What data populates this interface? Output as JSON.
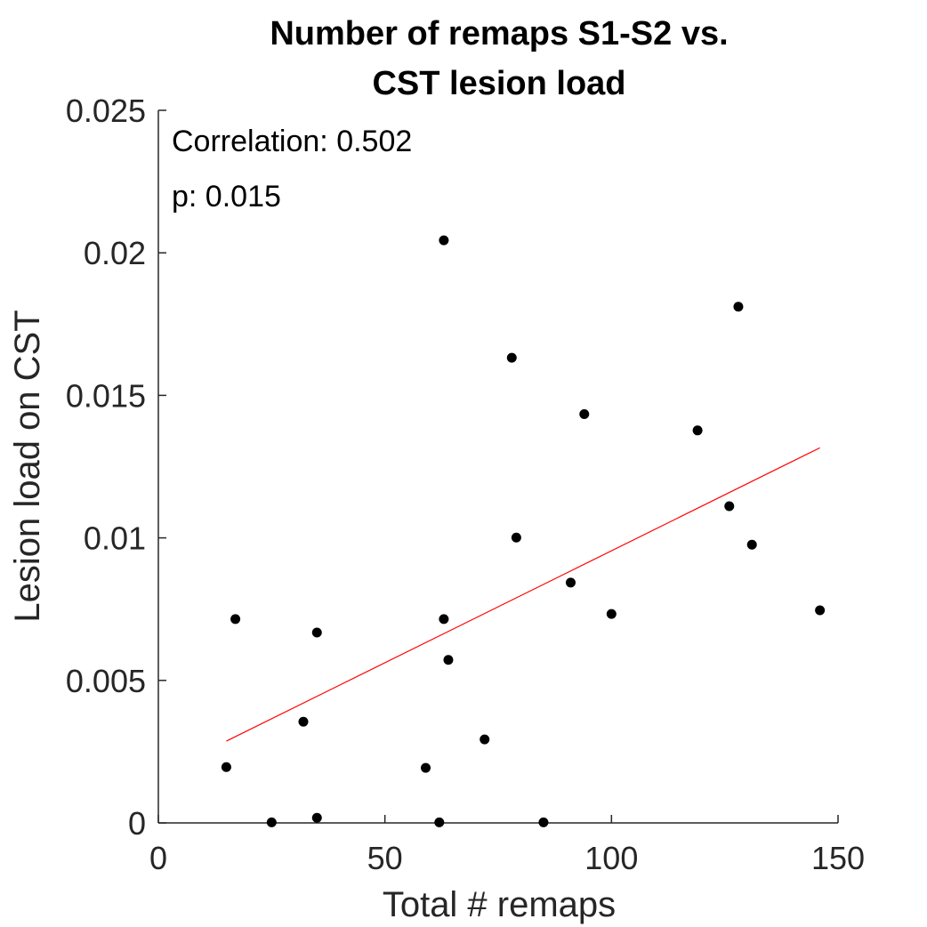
{
  "chart_data": {
    "type": "scatter",
    "title": [
      "Number of remaps S1-S2 vs.",
      "CST lesion load"
    ],
    "xlabel": "Total # remaps",
    "ylabel": "Lesion load on CST",
    "xlim": [
      0,
      150
    ],
    "ylim": [
      0,
      0.025
    ],
    "xticks": [
      0,
      50,
      100,
      150
    ],
    "xtick_labels": [
      "0",
      "50",
      "100",
      "150"
    ],
    "yticks": [
      0,
      0.005,
      0.01,
      0.015,
      0.02,
      0.025
    ],
    "ytick_labels": [
      "0",
      "0.005",
      "0.01",
      "0.015",
      "0.02",
      "0.025"
    ],
    "grid": false,
    "annotations": [
      "Correlation: 0.502",
      "p: 0.015"
    ],
    "point_color": "#000000",
    "fit_color": "#ff0000",
    "x": [
      15,
      17,
      25,
      32,
      35,
      35,
      59,
      62,
      63,
      63,
      64,
      72,
      78,
      79,
      85,
      91,
      94,
      100,
      119,
      126,
      128,
      131,
      146
    ],
    "y": [
      0.00196,
      0.00715,
      2e-05,
      0.00355,
      0.00018,
      0.00668,
      0.00193,
      2e-05,
      0.02044,
      0.00715,
      0.00572,
      0.00293,
      0.01632,
      0.01001,
      2e-05,
      0.00843,
      0.01434,
      0.00733,
      0.01377,
      0.01111,
      0.01811,
      0.00976,
      0.00746
    ],
    "fit_line": {
      "x": [
        15,
        146
      ],
      "y": [
        0.00287,
        0.01316
      ]
    }
  }
}
